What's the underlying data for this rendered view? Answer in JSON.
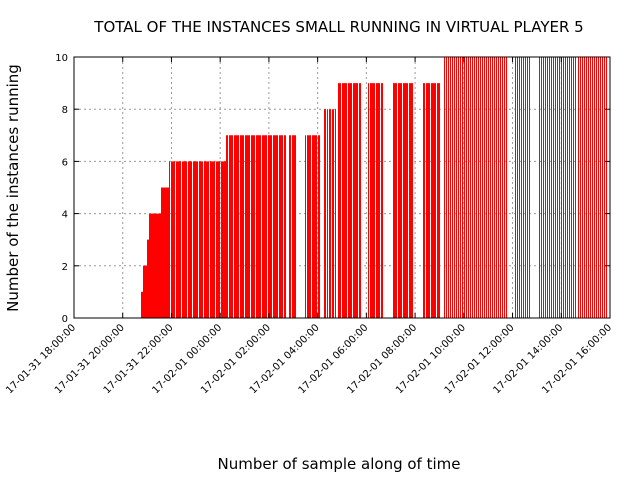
{
  "chart_data": {
    "type": "bar",
    "title": "TOTAL OF THE INSTANCES SMALL RUNNING IN VIRTUAL PLAYER 5",
    "xlabel": "Number of sample along of time",
    "ylabel": "Number of the instances running",
    "xlim": [
      "17-01-31 18:00:00",
      "17-02-01 16:00:00"
    ],
    "ylim": [
      0,
      10
    ],
    "x_ticks": [
      "17-01-31 18:00:00",
      "17-01-31 20:00:00",
      "17-01-31 22:00:00",
      "17-02-01 00:00:00",
      "17-02-01 02:00:00",
      "17-02-01 04:00:00",
      "17-02-01 06:00:00",
      "17-02-01 08:00:00",
      "17-02-01 10:00:00",
      "17-02-01 12:00:00",
      "17-02-01 14:00:00",
      "17-02-01 16:00:00"
    ],
    "y_ticks": [
      0,
      2,
      4,
      6,
      8,
      10
    ],
    "grid": true,
    "color": "#ff0000",
    "series": [
      {
        "segments": [
          {
            "start": "17-01-31 20:45:00",
            "end": "17-01-31 20:50:00",
            "value": 1,
            "spacing_min": 1
          },
          {
            "start": "17-01-31 20:50:00",
            "end": "17-01-31 21:00:00",
            "value": 2,
            "spacing_min": 1
          },
          {
            "start": "17-01-31 21:00:00",
            "end": "17-01-31 21:05:00",
            "value": 3,
            "spacing_min": 1
          },
          {
            "start": "17-01-31 21:05:00",
            "end": "17-01-31 21:35:00",
            "value": 4,
            "spacing_min": 1.5
          },
          {
            "start": "17-01-31 21:35:00",
            "end": "17-01-31 21:55:00",
            "value": 5,
            "spacing_min": 2
          },
          {
            "start": "17-01-31 21:55:00",
            "end": "17-02-01 00:15:00",
            "value": 6,
            "spacing_min": 3
          },
          {
            "start": "17-02-01 00:15:00",
            "end": "17-02-01 02:40:00",
            "value": 7,
            "spacing_min": 3
          },
          {
            "start": "17-02-01 02:50:00",
            "end": "17-02-01 03:05:00",
            "value": 7,
            "spacing_min": 3
          },
          {
            "start": "17-02-01 03:30:00",
            "end": "17-02-01 04:05:00",
            "value": 7,
            "spacing_min": 3
          },
          {
            "start": "17-02-01 04:15:00",
            "end": "17-02-01 04:45:00",
            "value": 8,
            "spacing_min": 4
          },
          {
            "start": "17-02-01 04:50:00",
            "end": "17-02-01 05:45:00",
            "value": 9,
            "spacing_min": 3
          },
          {
            "start": "17-02-01 06:05:00",
            "end": "17-02-01 06:40:00",
            "value": 9,
            "spacing_min": 3
          },
          {
            "start": "17-02-01 07:05:00",
            "end": "17-02-01 07:55:00",
            "value": 9,
            "spacing_min": 3
          },
          {
            "start": "17-02-01 08:20:00",
            "end": "17-02-01 09:00:00",
            "value": 9,
            "spacing_min": 3
          },
          {
            "start": "17-02-01 09:10:00",
            "end": "17-02-01 11:45:00",
            "value": 10,
            "spacing_min": 5
          },
          {
            "start": "17-02-01 12:05:00",
            "end": "17-02-01 12:40:00",
            "value": 10,
            "spacing_min": 5
          },
          {
            "start": "17-02-01 13:05:00",
            "end": "17-02-01 15:50:00",
            "value": 10,
            "spacing_min": 5
          }
        ]
      }
    ]
  }
}
